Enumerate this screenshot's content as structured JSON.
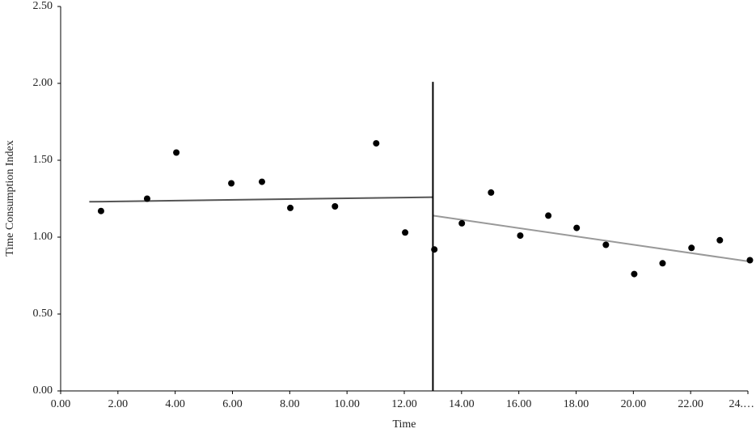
{
  "chart_data": {
    "type": "scatter",
    "x_label": "Time",
    "y_label": "Time Consumption Index",
    "xlim": [
      0,
      24
    ],
    "ylim": [
      0,
      2.5
    ],
    "xticks": [
      {
        "value": 0,
        "label": "0.00"
      },
      {
        "value": 2,
        "label": "2.00"
      },
      {
        "value": 4,
        "label": "4.00"
      },
      {
        "value": 6,
        "label": "6.00"
      },
      {
        "value": 8,
        "label": "8.00"
      },
      {
        "value": 10,
        "label": "10.00"
      },
      {
        "value": 12,
        "label": "12.00"
      },
      {
        "value": 14,
        "label": "14.00"
      },
      {
        "value": 16,
        "label": "16.00"
      },
      {
        "value": 18,
        "label": "18.00"
      },
      {
        "value": 20,
        "label": "20.00"
      },
      {
        "value": 22,
        "label": "22.00"
      },
      {
        "value": 24,
        "label": "24.…"
      }
    ],
    "yticks": [
      {
        "value": 0,
        "label": "0.00"
      },
      {
        "value": 0.5,
        "label": "0.50"
      },
      {
        "value": 1,
        "label": "1.00"
      },
      {
        "value": 1.5,
        "label": "1.50"
      },
      {
        "value": 2,
        "label": "2.00"
      },
      {
        "value": 2.5,
        "label": "2.50"
      }
    ],
    "series": [
      {
        "color": "#000000",
        "x": [
          1.41,
          3.02,
          4.04,
          5.96,
          7.03,
          8.02,
          9.58,
          11.02,
          12.03,
          13.05,
          14.01,
          15.03,
          16.05,
          17.03,
          18.02,
          19.04,
          20.03,
          21.02,
          22.03,
          23.02,
          24.07
        ],
        "values": [
          1.17,
          1.25,
          1.55,
          1.35,
          1.36,
          1.19,
          1.2,
          1.61,
          1.03,
          0.92,
          1.09,
          1.29,
          1.01,
          1.14,
          1.06,
          0.95,
          0.76,
          0.83,
          0.93,
          0.98,
          0.85
        ]
      }
    ],
    "lines": [
      {
        "color": "#555555",
        "x": [
          1,
          13
        ],
        "values": [
          1.23,
          1.26
        ]
      },
      {
        "color": "#999999",
        "x": [
          13,
          24.1
        ],
        "values": [
          1.14,
          0.84
        ]
      },
      {
        "color": "#000000",
        "x": [
          13,
          13
        ],
        "values": [
          0,
          2.01
        ]
      }
    ]
  }
}
